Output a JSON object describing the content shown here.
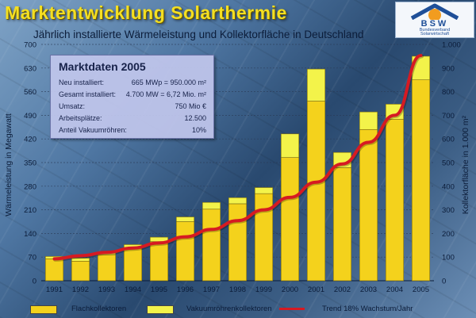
{
  "header": {
    "title": "Marktentwicklung Solarthermie",
    "subtitle": "Jährlich installierte Wärmeleistung und Kollektorfläche in Deutschland"
  },
  "logo": {
    "text": "BSW",
    "subtext_line1": "Bundesverband",
    "subtext_line2": "Solarwirtschaft"
  },
  "infobox": {
    "title": "Marktdaten 2005",
    "rows": [
      {
        "label": "Neu installiert:",
        "value": "665 MWp = 950.000 m²"
      },
      {
        "label": "Gesamt installiert:",
        "value": "4.700 MW = 6,72 Mio. m²"
      },
      {
        "label": "Umsatz:",
        "value": "750 Mio €"
      },
      {
        "label": "Arbeitsplätze:",
        "value": "12.500"
      },
      {
        "label": "Anteil Vakuumröhren:",
        "value": "10%"
      }
    ]
  },
  "colors": {
    "flach": "#f4d21c",
    "vakuum": "#f3f34a",
    "trend": "#d61a22",
    "grid": "#2a3a55"
  },
  "chart_data": {
    "type": "bar",
    "stacked": true,
    "title": "Marktentwicklung Solarthermie",
    "subtitle": "Jährlich installierte Wärmeleistung und Kollektorfläche in Deutschland",
    "ylabel": "Wärmeleistung in Megawatt",
    "ylabel_right": "Kollektorfläche in 1.000 m²",
    "ylim": [
      0,
      700
    ],
    "ylim_right": [
      0,
      1000
    ],
    "yticks": [
      0,
      70,
      140,
      210,
      280,
      350,
      420,
      490,
      560,
      630,
      700
    ],
    "yticks_right": [
      0,
      100,
      200,
      300,
      400,
      500,
      600,
      700,
      800,
      900,
      1000
    ],
    "ytick_labels_right": [
      "0",
      "100",
      "200",
      "300",
      "400",
      "500",
      "600",
      "700",
      "800",
      "900",
      "1.000"
    ],
    "categories": [
      "1991",
      "1992",
      "1993",
      "1994",
      "1995",
      "1996",
      "1997",
      "1998",
      "1999",
      "2000",
      "2001",
      "2002",
      "2003",
      "2004",
      "2005"
    ],
    "series": [
      {
        "name": "Flachkollektoren",
        "values": [
          65,
          58,
          77,
          98,
          116,
          175,
          212,
          228,
          258,
          365,
          532,
          335,
          448,
          478,
          595
        ]
      },
      {
        "name": "Vakuumröhrenkollektoren",
        "values": [
          7,
          9,
          8,
          9,
          13,
          14,
          20,
          18,
          18,
          70,
          95,
          45,
          52,
          45,
          70
        ]
      }
    ],
    "trend": {
      "name": "Trend 18% Wachstum/Jahr",
      "values": [
        65,
        74,
        84,
        97,
        112,
        130,
        152,
        178,
        210,
        247,
        292,
        346,
        410,
        490,
        667
      ]
    },
    "grid": true,
    "legend": "bottom"
  }
}
